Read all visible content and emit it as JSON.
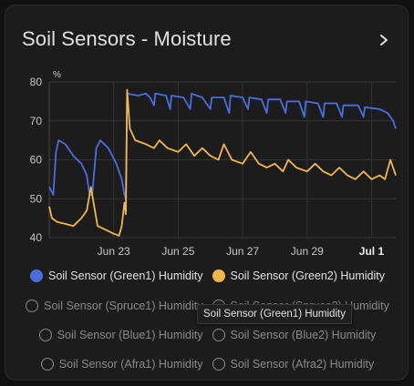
{
  "card": {
    "title": "Soil Sensors - Moisture"
  },
  "tooltip": "Soil Sensor (Green1) Humidity",
  "legend": [
    {
      "label": "Soil Sensor (Green1) Humidity",
      "color": "#4a6ee0",
      "active": true
    },
    {
      "label": "Soil Sensor (Green2) Humidity",
      "color": "#f0b84b",
      "active": true
    },
    {
      "label": "Soil Sensor (Spruce1) Humidity",
      "active": false
    },
    {
      "label": "Soil Sensor (Spruce2) Humidity",
      "active": false
    },
    {
      "label": "Soil Sensor (Blue1) Humidity",
      "active": false
    },
    {
      "label": "Soil Sensor (Blue2) Humidity",
      "active": false
    },
    {
      "label": "Soil Sensor (Afra1) Humidity",
      "active": false
    },
    {
      "label": "Soil Sensor (Afra2) Humidity",
      "active": false
    }
  ],
  "chart_data": {
    "type": "line",
    "ylabel": "%",
    "ylim": [
      40,
      80
    ],
    "yticks": [
      40,
      50,
      60,
      70,
      80
    ],
    "xlim": [
      "2024-06-21",
      "2024-07-01T18:00"
    ],
    "xticks": [
      {
        "x": "2024-06-23",
        "label": "Jun 23",
        "bold": false
      },
      {
        "x": "2024-06-25",
        "label": "Jun 25",
        "bold": false
      },
      {
        "x": "2024-06-27",
        "label": "Jun 27",
        "bold": false
      },
      {
        "x": "2024-06-29",
        "label": "Jun 29",
        "bold": false
      },
      {
        "x": "2024-07-01",
        "label": "Jul 1",
        "bold": true
      }
    ],
    "grid": true,
    "series": [
      {
        "name": "Soil Sensor (Green1) Humidity",
        "color": "#4a6ee0",
        "points": [
          [
            "2024-06-21T00:00",
            53
          ],
          [
            "2024-06-21T03:00",
            51
          ],
          [
            "2024-06-21T05:00",
            62
          ],
          [
            "2024-06-21T07:00",
            65
          ],
          [
            "2024-06-21T12:00",
            64
          ],
          [
            "2024-06-21T18:00",
            61
          ],
          [
            "2024-06-22T00:00",
            59
          ],
          [
            "2024-06-22T04:00",
            56
          ],
          [
            "2024-06-22T06:00",
            51
          ],
          [
            "2024-06-22T08:00",
            51
          ],
          [
            "2024-06-22T11:00",
            63
          ],
          [
            "2024-06-22T14:00",
            65
          ],
          [
            "2024-06-22T20:00",
            63
          ],
          [
            "2024-06-23T02:00",
            59
          ],
          [
            "2024-06-23T06:00",
            55
          ],
          [
            "2024-06-23T08:00",
            51
          ],
          [
            "2024-06-23T09:00",
            50
          ],
          [
            "2024-06-23T10:00",
            77
          ],
          [
            "2024-06-23T18:00",
            76.5
          ],
          [
            "2024-06-24T00:00",
            77
          ],
          [
            "2024-06-24T03:00",
            76
          ],
          [
            "2024-06-24T06:00",
            74
          ],
          [
            "2024-06-24T07:00",
            77
          ],
          [
            "2024-06-24T15:00",
            76.5
          ],
          [
            "2024-06-24T18:00",
            73
          ],
          [
            "2024-06-24T19:00",
            76.5
          ],
          [
            "2024-06-25T04:00",
            76
          ],
          [
            "2024-06-25T09:00",
            73
          ],
          [
            "2024-06-25T10:00",
            77
          ],
          [
            "2024-06-25T18:00",
            76
          ],
          [
            "2024-06-26T00:00",
            73
          ],
          [
            "2024-06-26T01:00",
            76
          ],
          [
            "2024-06-26T10:00",
            76
          ],
          [
            "2024-06-26T14:00",
            72
          ],
          [
            "2024-06-26T15:00",
            76.5
          ],
          [
            "2024-06-27T00:00",
            76
          ],
          [
            "2024-06-27T04:00",
            73
          ],
          [
            "2024-06-27T05:00",
            76
          ],
          [
            "2024-06-27T14:00",
            75.5
          ],
          [
            "2024-06-27T18:00",
            72
          ],
          [
            "2024-06-27T19:00",
            75.5
          ],
          [
            "2024-06-28T04:00",
            75.5
          ],
          [
            "2024-06-28T08:00",
            72
          ],
          [
            "2024-06-28T09:00",
            75
          ],
          [
            "2024-06-28T18:00",
            75
          ],
          [
            "2024-06-28T22:00",
            71
          ],
          [
            "2024-06-28T23:00",
            75
          ],
          [
            "2024-06-29T08:00",
            74.5
          ],
          [
            "2024-06-29T12:00",
            71
          ],
          [
            "2024-06-29T13:00",
            74.5
          ],
          [
            "2024-06-29T22:00",
            74.5
          ],
          [
            "2024-06-30T02:00",
            71
          ],
          [
            "2024-06-30T03:00",
            74
          ],
          [
            "2024-06-30T14:00",
            74
          ],
          [
            "2024-06-30T18:00",
            71
          ],
          [
            "2024-06-30T19:00",
            73.5
          ],
          [
            "2024-07-01T06:00",
            73
          ],
          [
            "2024-07-01T12:00",
            72
          ],
          [
            "2024-07-01T16:00",
            70
          ],
          [
            "2024-07-01T18:00",
            68
          ]
        ]
      },
      {
        "name": "Soil Sensor (Green2) Humidity",
        "color": "#f0b84b",
        "points": [
          [
            "2024-06-21T00:00",
            48
          ],
          [
            "2024-06-21T02:00",
            45
          ],
          [
            "2024-06-21T06:00",
            44
          ],
          [
            "2024-06-21T12:00",
            43.5
          ],
          [
            "2024-06-21T18:00",
            43
          ],
          [
            "2024-06-22T00:00",
            45
          ],
          [
            "2024-06-22T04:00",
            47
          ],
          [
            "2024-06-22T07:00",
            53
          ],
          [
            "2024-06-22T09:00",
            49
          ],
          [
            "2024-06-22T12:00",
            43
          ],
          [
            "2024-06-22T18:00",
            42
          ],
          [
            "2024-06-23T00:00",
            41
          ],
          [
            "2024-06-23T04:00",
            40.5
          ],
          [
            "2024-06-23T06:00",
            43
          ],
          [
            "2024-06-23T08:00",
            49
          ],
          [
            "2024-06-23T09:00",
            46
          ],
          [
            "2024-06-23T10:00",
            78
          ],
          [
            "2024-06-23T12:00",
            68
          ],
          [
            "2024-06-23T16:00",
            65
          ],
          [
            "2024-06-24T00:00",
            64
          ],
          [
            "2024-06-24T06:00",
            63
          ],
          [
            "2024-06-24T10:00",
            65
          ],
          [
            "2024-06-24T16:00",
            63
          ],
          [
            "2024-06-25T00:00",
            62
          ],
          [
            "2024-06-25T06:00",
            64
          ],
          [
            "2024-06-25T12:00",
            61
          ],
          [
            "2024-06-25T18:00",
            63
          ],
          [
            "2024-06-26T00:00",
            61
          ],
          [
            "2024-06-26T06:00",
            60
          ],
          [
            "2024-06-26T10:00",
            64
          ],
          [
            "2024-06-26T16:00",
            60
          ],
          [
            "2024-06-27T00:00",
            59
          ],
          [
            "2024-06-27T06:00",
            62
          ],
          [
            "2024-06-27T12:00",
            59
          ],
          [
            "2024-06-27T18:00",
            58
          ],
          [
            "2024-06-28T00:00",
            59
          ],
          [
            "2024-06-28T06:00",
            57
          ],
          [
            "2024-06-28T10:00",
            60
          ],
          [
            "2024-06-28T16:00",
            58
          ],
          [
            "2024-06-29T00:00",
            57
          ],
          [
            "2024-06-29T06:00",
            59
          ],
          [
            "2024-06-29T12:00",
            57
          ],
          [
            "2024-06-29T18:00",
            56
          ],
          [
            "2024-06-30T00:00",
            58
          ],
          [
            "2024-06-30T06:00",
            56
          ],
          [
            "2024-06-30T12:00",
            55
          ],
          [
            "2024-06-30T18:00",
            57
          ],
          [
            "2024-07-01T00:00",
            55
          ],
          [
            "2024-07-01T06:00",
            56
          ],
          [
            "2024-07-01T10:00",
            55
          ],
          [
            "2024-07-01T14:00",
            60
          ],
          [
            "2024-07-01T18:00",
            56
          ]
        ]
      }
    ]
  }
}
